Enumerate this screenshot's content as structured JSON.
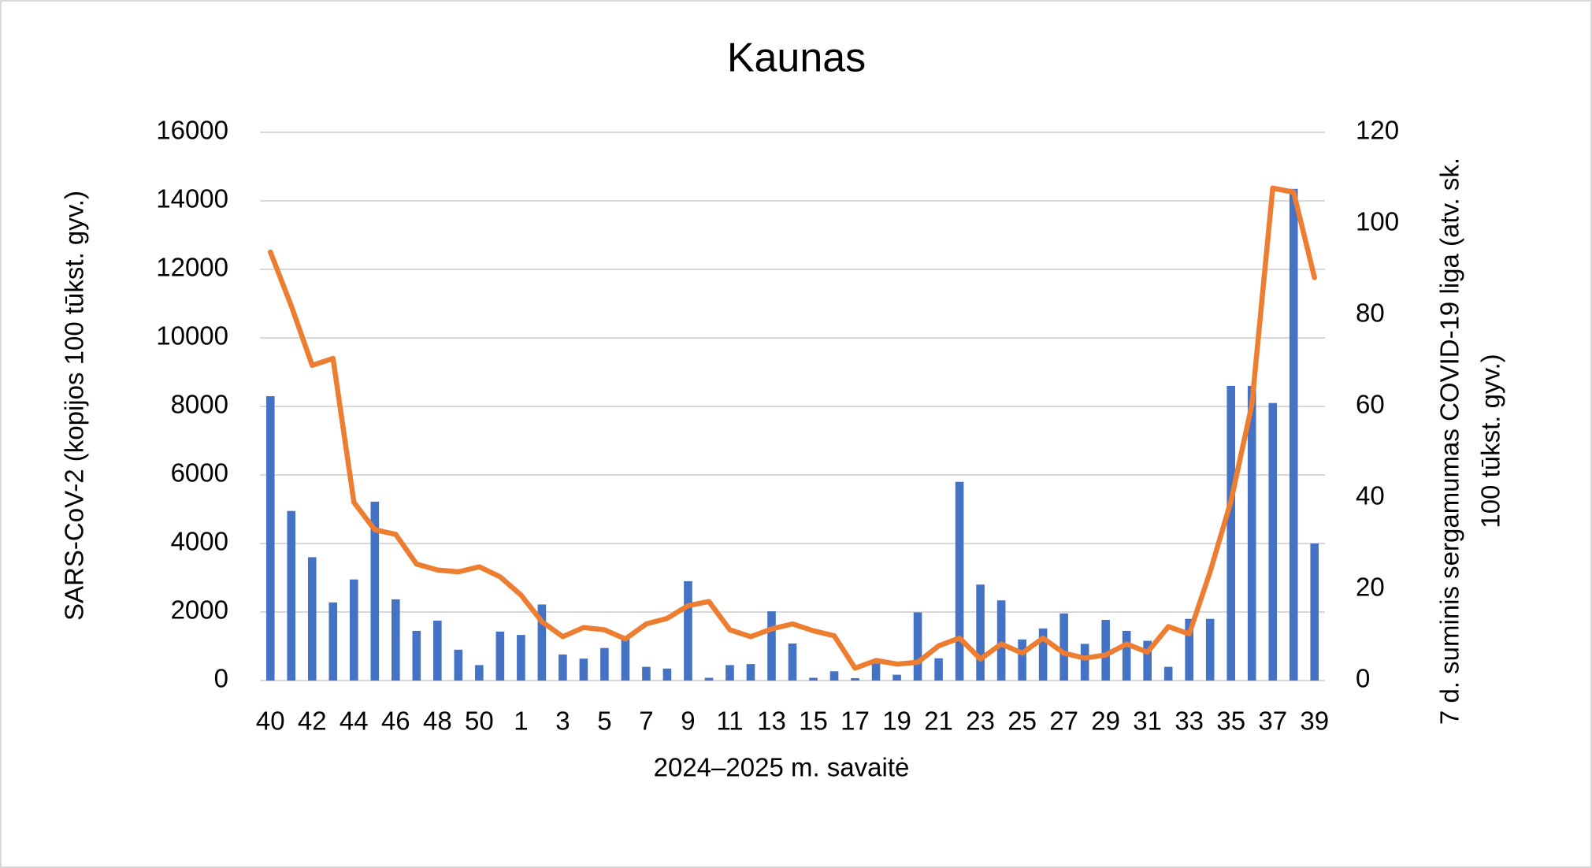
{
  "chart_data": {
    "type": "bar-line",
    "title": "Kaunas",
    "xlabel": "2024–2025 m. savaitė",
    "ylabel": "SARS-CoV-2  (kopijos 100 tūkst. gyv.)",
    "y2label": [
      "7 d. suminis sergamumas COVID-19 liga (atv. sk.",
      "100 tūkst. gyv.)"
    ],
    "categories": [
      "40",
      null,
      "42",
      null,
      "44",
      null,
      "46",
      null,
      "48",
      null,
      "50",
      null,
      "1",
      null,
      "3",
      null,
      "5",
      null,
      "7",
      null,
      "9",
      null,
      "11",
      null,
      "13",
      null,
      "15",
      null,
      "17",
      null,
      "19",
      null,
      "21",
      null,
      "23",
      null,
      "25",
      null,
      "27",
      null,
      "29",
      null,
      "31",
      null,
      "33",
      null,
      "35",
      null,
      "37",
      null,
      "39"
    ],
    "series": [
      {
        "name": "SARS-CoV-2",
        "color": "#4472c4",
        "kind": "bar",
        "values": [
          8300,
          4950,
          3600,
          2280,
          2950,
          5220,
          2370,
          1450,
          1750,
          900,
          450,
          1430,
          1330,
          2220,
          760,
          640,
          950,
          1200,
          400,
          350,
          2900,
          80,
          450,
          480,
          2020,
          1080,
          80,
          270,
          70,
          500,
          170,
          1990,
          650,
          5800,
          2800,
          2340,
          1200,
          1520,
          1960,
          1070,
          1770,
          1450,
          1160,
          400,
          1800,
          1800,
          8600,
          8600,
          8100,
          14350,
          4000
        ]
      },
      {
        "name": "7 d. suminis sergamumas",
        "color": "#ed7d31",
        "kind": "line",
        "axis": "y2",
        "values": [
          93.8,
          82,
          69,
          70.5,
          39,
          33,
          32,
          25.5,
          24.2,
          23.8,
          24.9,
          22.7,
          18.7,
          12.9,
          9.6,
          11.6,
          11.1,
          9.1,
          12.4,
          13.6,
          16.4,
          17.3,
          11.1,
          9.6,
          11.3,
          12.4,
          10.9,
          9.8,
          2.7,
          4.4,
          3.6,
          4,
          7.6,
          9.3,
          4.7,
          8,
          6,
          9.3,
          6,
          4.9,
          5.6,
          8,
          6.2,
          11.8,
          10.2,
          23.8,
          39.3,
          60.4,
          107.8,
          106.9,
          88.2
        ]
      }
    ],
    "ylim": [
      0,
      16000
    ],
    "yticks": [
      0,
      2000,
      4000,
      6000,
      8000,
      10000,
      12000,
      14000,
      16000
    ],
    "y2lim": [
      0,
      120
    ],
    "y2ticks": [
      0,
      20,
      40,
      60,
      80,
      100,
      120
    ],
    "grid": true
  }
}
